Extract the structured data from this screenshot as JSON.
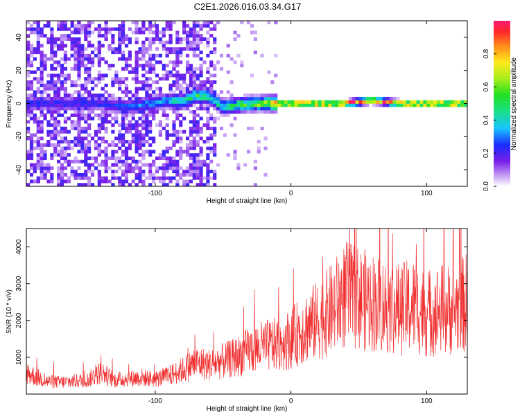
{
  "figure_title": "C2E1.2026.016.03.34.G17",
  "chart_data": [
    {
      "type": "heatmap",
      "xlabel": "Height of straight line (km)",
      "ylabel": "Frequency (Hz)",
      "xlim": [
        -195,
        130
      ],
      "ylim": [
        -50,
        50
      ],
      "xticks": [
        -100,
        0,
        100
      ],
      "yticks": [
        -40,
        -20,
        0,
        20,
        40
      ],
      "grid": false,
      "colorbar": {
        "label": "Normalized spectral amplitude",
        "range": [
          0,
          1
        ],
        "ticks": [
          0.0,
          0.2,
          0.4,
          0.6,
          0.8
        ],
        "tick_labels": [
          "0.0",
          "0.2",
          "0.4",
          "0.6",
          "0.8"
        ]
      },
      "colors": {
        "low": "#e6d0fb",
        "mid_low": "#7a1fe8",
        "mid": "#1a5cff",
        "mid_high": "#19e08a",
        "high": "#ff2a2a"
      },
      "ridge": [
        {
          "x": -140,
          "freq": 0,
          "amp": 0.22
        },
        {
          "x": -120,
          "freq": -2,
          "amp": 0.25
        },
        {
          "x": -90,
          "freq": 2,
          "amp": 0.35
        },
        {
          "x": -80,
          "freq": 1,
          "amp": 0.45
        },
        {
          "x": -70,
          "freq": 5,
          "amp": 0.5
        },
        {
          "x": -60,
          "freq": 4,
          "amp": 0.45
        },
        {
          "x": -50,
          "freq": -2,
          "amp": 0.45
        },
        {
          "x": -40,
          "freq": -1,
          "amp": 0.5
        },
        {
          "x": -30,
          "freq": 0,
          "amp": 0.55
        },
        {
          "x": -20,
          "freq": 0,
          "amp": 0.6
        },
        {
          "x": -10,
          "freq": 0,
          "amp": 0.85
        },
        {
          "x": 0,
          "freq": 0,
          "amp": 0.95
        },
        {
          "x": 20,
          "freq": 0,
          "amp": 0.95
        },
        {
          "x": 40,
          "freq": 0,
          "amp": 0.9
        },
        {
          "x": 60,
          "freq": 2,
          "amp": 0.95
        },
        {
          "x": 80,
          "freq": 0,
          "amp": 0.95
        },
        {
          "x": 100,
          "freq": 0,
          "amp": 0.9
        },
        {
          "x": 130,
          "freq": 0,
          "amp": 0.9
        }
      ]
    },
    {
      "type": "line",
      "xlabel": "Height of straight line (km)",
      "ylabel": "SNR (10 * v/v)",
      "xlim": [
        -195,
        130
      ],
      "ylim": [
        0,
        4500
      ],
      "xticks": [
        -100,
        0,
        100
      ],
      "yticks": [
        1000,
        2000,
        3000,
        4000
      ],
      "grid": false,
      "color": "#f03030",
      "x": [
        -195,
        -190,
        -180,
        -170,
        -160,
        -150,
        -140,
        -130,
        -120,
        -110,
        -100,
        -90,
        -80,
        -70,
        -60,
        -50,
        -40,
        -30,
        -20,
        -10,
        0,
        10,
        20,
        30,
        40,
        50,
        60,
        70,
        80,
        90,
        100,
        110,
        120,
        130
      ],
      "values": [
        600,
        500,
        350,
        320,
        350,
        380,
        600,
        380,
        420,
        450,
        400,
        500,
        650,
        850,
        800,
        900,
        1000,
        1200,
        1300,
        1350,
        1500,
        1800,
        2000,
        2300,
        2700,
        2600,
        2500,
        2400,
        2300,
        2400,
        2200,
        2300,
        2300,
        2500
      ]
    }
  ]
}
